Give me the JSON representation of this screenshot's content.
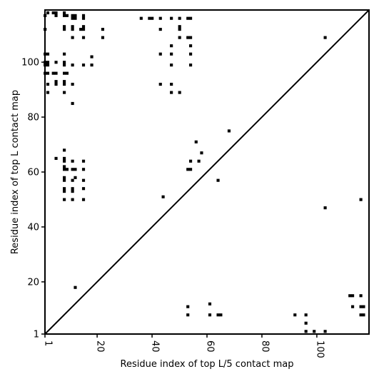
{
  "chart_data": {
    "type": "scatter",
    "xlabel": "Residue index of top L/5 contact map",
    "ylabel": "Residue index of top L contact map",
    "xlim": [
      1,
      119
    ],
    "ylim": [
      1,
      119
    ],
    "x_ticks": [
      "1",
      "20",
      "40",
      "60",
      "80",
      "100"
    ],
    "y_ticks": [
      "1",
      "20",
      "40",
      "60",
      "80",
      "100"
    ],
    "x_tick_values": [
      1,
      20,
      40,
      60,
      80,
      100
    ],
    "y_tick_values": [
      1,
      20,
      40,
      60,
      80,
      100
    ],
    "diagonal": true,
    "grid": false,
    "marker_color": "#000000",
    "series": [
      {
        "region": "upper-left",
        "points": [
          [
            1,
            117
          ],
          [
            2,
            118
          ],
          [
            4,
            118
          ],
          [
            5,
            117
          ],
          [
            5,
            118
          ],
          [
            8,
            117
          ],
          [
            8,
            118
          ],
          [
            9,
            117
          ],
          [
            11,
            117
          ],
          [
            12,
            117
          ],
          [
            11,
            116
          ],
          [
            12,
            116
          ],
          [
            15,
            117
          ],
          [
            15,
            116
          ],
          [
            1,
            112
          ],
          [
            8,
            112
          ],
          [
            8,
            113
          ],
          [
            11,
            112
          ],
          [
            11,
            113
          ],
          [
            14,
            112
          ],
          [
            15,
            112
          ],
          [
            15,
            113
          ],
          [
            11,
            109
          ],
          [
            15,
            109
          ],
          [
            1,
            103
          ],
          [
            2,
            103
          ],
          [
            8,
            103
          ],
          [
            1,
            100
          ],
          [
            2,
            100
          ],
          [
            1,
            99
          ],
          [
            2,
            99
          ],
          [
            5,
            100
          ],
          [
            8,
            100
          ],
          [
            8,
            99
          ],
          [
            11,
            99
          ],
          [
            15,
            99
          ],
          [
            18,
            102
          ],
          [
            18,
            99
          ],
          [
            1,
            96
          ],
          [
            2,
            96
          ],
          [
            4,
            96
          ],
          [
            5,
            96
          ],
          [
            8,
            96
          ],
          [
            9,
            96
          ],
          [
            2,
            92
          ],
          [
            5,
            93
          ],
          [
            5,
            92
          ],
          [
            8,
            93
          ],
          [
            8,
            92
          ],
          [
            11,
            92
          ],
          [
            2,
            89
          ],
          [
            8,
            89
          ],
          [
            11,
            85
          ],
          [
            22,
            112
          ],
          [
            22,
            109
          ],
          [
            36,
            116
          ],
          [
            39,
            116
          ],
          [
            40,
            116
          ],
          [
            43,
            116
          ],
          [
            47,
            116
          ],
          [
            50,
            116
          ],
          [
            53,
            116
          ],
          [
            54,
            116
          ],
          [
            43,
            112
          ],
          [
            50,
            113
          ],
          [
            50,
            112
          ],
          [
            50,
            109
          ],
          [
            53,
            109
          ],
          [
            54,
            109
          ],
          [
            47,
            106
          ],
          [
            54,
            106
          ],
          [
            43,
            103
          ],
          [
            47,
            103
          ],
          [
            54,
            103
          ],
          [
            47,
            99
          ],
          [
            54,
            99
          ],
          [
            43,
            92
          ],
          [
            47,
            92
          ],
          [
            47,
            89
          ],
          [
            50,
            89
          ],
          [
            5,
            65
          ],
          [
            8,
            68
          ],
          [
            8,
            65
          ],
          [
            8,
            64
          ],
          [
            8,
            62
          ],
          [
            8,
            61
          ],
          [
            9,
            61
          ],
          [
            11,
            64
          ],
          [
            11,
            61
          ],
          [
            12,
            61
          ],
          [
            15,
            64
          ],
          [
            15,
            61
          ],
          [
            8,
            58
          ],
          [
            8,
            57
          ],
          [
            11,
            57
          ],
          [
            12,
            58
          ],
          [
            15,
            57
          ],
          [
            8,
            54
          ],
          [
            8,
            53
          ],
          [
            11,
            54
          ],
          [
            11,
            53
          ],
          [
            15,
            54
          ],
          [
            8,
            50
          ],
          [
            11,
            50
          ],
          [
            15,
            50
          ],
          [
            44,
            51
          ],
          [
            53,
            61
          ],
          [
            54,
            61
          ],
          [
            54,
            64
          ],
          [
            56,
            71
          ],
          [
            57,
            64
          ],
          [
            58,
            67
          ],
          [
            64,
            57
          ],
          [
            68,
            75
          ],
          [
            103,
            109
          ],
          [
            103,
            47
          ],
          [
            116,
            50
          ]
        ]
      },
      {
        "region": "lower-right",
        "points": [
          [
            12,
            18
          ],
          [
            53,
            11
          ],
          [
            53,
            8
          ],
          [
            61,
            12
          ],
          [
            61,
            8
          ],
          [
            64,
            8
          ],
          [
            65,
            8
          ],
          [
            92,
            8
          ],
          [
            96,
            8
          ],
          [
            96,
            5
          ],
          [
            96,
            2
          ],
          [
            99,
            2
          ],
          [
            103,
            2
          ],
          [
            112,
            15
          ],
          [
            113,
            15
          ],
          [
            116,
            15
          ],
          [
            113,
            11
          ],
          [
            116,
            11
          ],
          [
            117,
            11
          ],
          [
            116,
            8
          ],
          [
            117,
            8
          ]
        ]
      }
    ]
  }
}
